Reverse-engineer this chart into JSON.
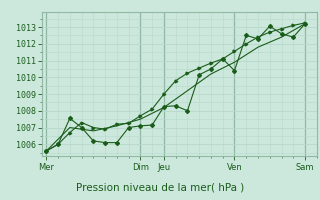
{
  "background_color": "#cce8dc",
  "grid_color_minor": "#b8d8cc",
  "grid_color_major": "#90b8a4",
  "line_color": "#1a5c1a",
  "marker_color": "#1a5c1a",
  "ylabel_ticks": [
    1006,
    1007,
    1008,
    1009,
    1010,
    1011,
    1012,
    1013
  ],
  "ylim": [
    1005.3,
    1013.9
  ],
  "xlabel": "Pression niveau de la mer( hPa )",
  "day_labels": [
    "Mer",
    "Dim",
    "Jeu",
    "Ven",
    "Sam"
  ],
  "day_positions": [
    0,
    4,
    5,
    8,
    11
  ],
  "xlim": [
    -0.2,
    11.5
  ],
  "series1_x": [
    0,
    0.5,
    1.0,
    1.5,
    2.0,
    2.5,
    3.0,
    3.5,
    4.0,
    4.5,
    5.0,
    5.5,
    6.0,
    6.5,
    7.0,
    7.5,
    8.0,
    8.5,
    9.0,
    9.5,
    10.0,
    10.5,
    11.0
  ],
  "series1_y": [
    1005.6,
    1006.0,
    1007.55,
    1007.0,
    1006.2,
    1006.1,
    1006.1,
    1007.0,
    1007.1,
    1007.15,
    1008.25,
    1008.3,
    1008.0,
    1010.15,
    1010.5,
    1011.1,
    1010.4,
    1012.5,
    1012.3,
    1013.05,
    1012.6,
    1012.4,
    1013.2
  ],
  "series2_x": [
    0,
    0.5,
    1.0,
    1.5,
    2.0,
    2.5,
    3.0,
    3.5,
    4.0,
    4.5,
    5.0,
    5.5,
    6.0,
    6.5,
    7.0,
    7.5,
    8.0,
    8.5,
    9.0,
    9.5,
    10.0,
    10.5,
    11.0
  ],
  "series2_y": [
    1005.6,
    1006.0,
    1006.7,
    1007.3,
    1007.0,
    1006.9,
    1007.2,
    1007.25,
    1007.7,
    1008.1,
    1009.0,
    1009.8,
    1010.25,
    1010.55,
    1010.85,
    1011.1,
    1011.55,
    1012.0,
    1012.4,
    1012.7,
    1012.9,
    1013.1,
    1013.25
  ],
  "series3_x": [
    0,
    1,
    2,
    3,
    4,
    5,
    6,
    7,
    8,
    9,
    10,
    11
  ],
  "series3_y": [
    1005.6,
    1007.0,
    1006.8,
    1007.1,
    1007.5,
    1008.2,
    1009.2,
    1010.2,
    1010.9,
    1011.8,
    1012.4,
    1013.2
  ],
  "tick_fontsize": 6,
  "xlabel_fontsize": 7.5
}
